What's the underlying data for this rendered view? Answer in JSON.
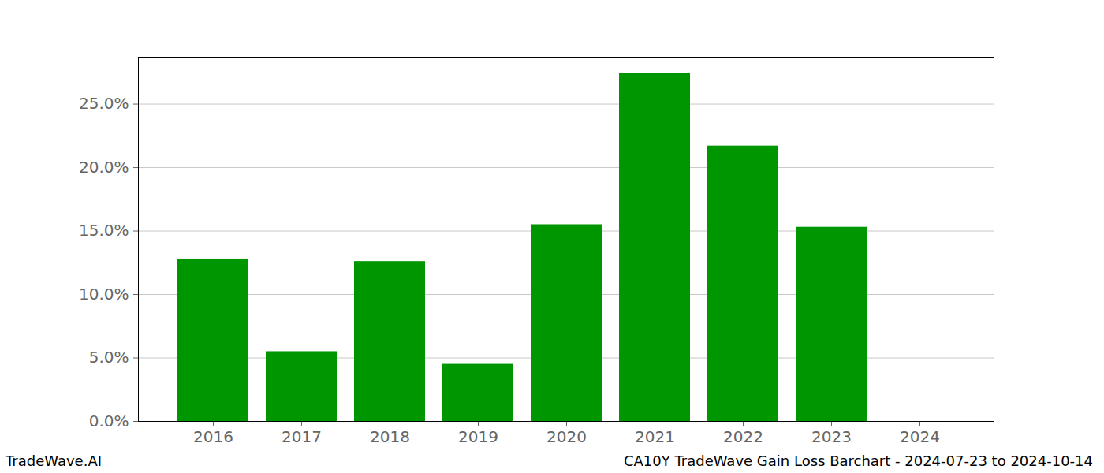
{
  "chart_data": {
    "type": "bar",
    "title": "CA10Y TradeWave Gain Loss Barchart - 2024-07-23 to 2024-10-14",
    "caption": "TradeWave.AI",
    "categories": [
      "2016",
      "2017",
      "2018",
      "2019",
      "2020",
      "2021",
      "2022",
      "2023",
      "2024"
    ],
    "values": [
      12.8,
      5.5,
      12.6,
      4.5,
      15.5,
      27.4,
      21.7,
      15.3,
      0
    ],
    "color": "#009600",
    "ylim": [
      0,
      28.7
    ],
    "yticks": [
      {
        "value": 0,
        "label": "0.0%"
      },
      {
        "value": 5,
        "label": "5.0%"
      },
      {
        "value": 10,
        "label": "10.0%"
      },
      {
        "value": 15,
        "label": "15.0%"
      },
      {
        "value": 20,
        "label": "20.0%"
      },
      {
        "value": 25,
        "label": "25.0%"
      }
    ],
    "grid": true
  }
}
